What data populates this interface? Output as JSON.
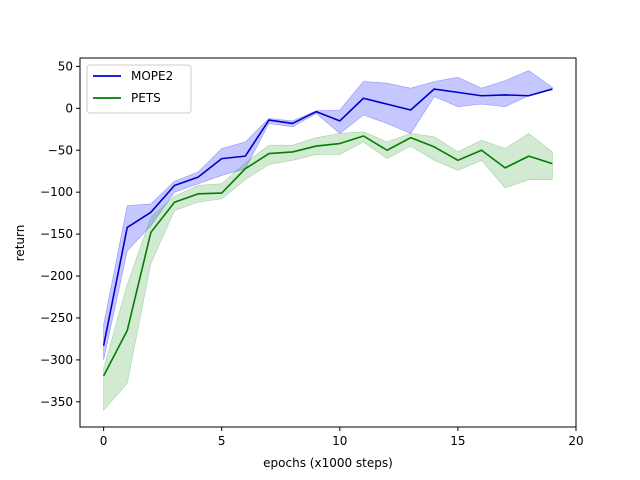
{
  "chart_data": {
    "type": "line",
    "title": "",
    "xlabel": "epochs (x1000 steps)",
    "ylabel": "return",
    "xlim": [
      -1,
      20
    ],
    "ylim": [
      -380,
      60
    ],
    "xticks": [
      0,
      5,
      10,
      15,
      20
    ],
    "yticks": [
      50,
      0,
      -50,
      -100,
      -150,
      -200,
      -250,
      -300,
      -350
    ],
    "xtick_labels": [
      "0",
      "5",
      "10",
      "15",
      "20"
    ],
    "ytick_labels": [
      "50",
      "0",
      "−50",
      "−100",
      "−150",
      "−200",
      "−250",
      "−300",
      "−350"
    ],
    "legend_position": "top-left",
    "grid": false,
    "x": [
      0,
      1,
      2,
      3,
      4,
      5,
      6,
      7,
      8,
      9,
      10,
      11,
      12,
      13,
      14,
      15,
      16,
      17,
      18,
      19
    ],
    "series": [
      {
        "name": "MOPE2",
        "color": "#0000cc",
        "fill_color": "#0000ff",
        "values": [
          -283,
          -142,
          -124,
          -92,
          -82,
          -60,
          -57,
          -14,
          -18,
          -4,
          -15,
          12,
          5,
          -2,
          23,
          19,
          15,
          16,
          15,
          23
        ],
        "lower": [
          -300,
          -170,
          -140,
          -100,
          -90,
          -80,
          -72,
          -18,
          -22,
          -6,
          -30,
          -8,
          -18,
          -30,
          14,
          2,
          5,
          2,
          15,
          22
        ],
        "upper": [
          -258,
          -116,
          -114,
          -87,
          -76,
          -48,
          -40,
          -12,
          -15,
          -3,
          -2,
          32,
          30,
          24,
          32,
          37,
          24,
          33,
          45,
          25
        ]
      },
      {
        "name": "PETS",
        "color": "#007f00",
        "fill_color": "#2ca02c",
        "values": [
          -319,
          -265,
          -148,
          -112,
          -102,
          -101,
          -72,
          -54,
          -52,
          -45,
          -42,
          -33,
          -50,
          -35,
          -46,
          -62,
          -50,
          -71,
          -57,
          -66
        ],
        "lower": [
          -360,
          -328,
          -185,
          -122,
          -112,
          -108,
          -85,
          -67,
          -62,
          -55,
          -55,
          -40,
          -60,
          -45,
          -62,
          -74,
          -62,
          -95,
          -85,
          -85
        ],
        "upper": [
          -310,
          -210,
          -130,
          -105,
          -92,
          -90,
          -65,
          -44,
          -44,
          -35,
          -30,
          -28,
          -40,
          -30,
          -34,
          -52,
          -38,
          -48,
          -30,
          -52
        ]
      }
    ]
  }
}
